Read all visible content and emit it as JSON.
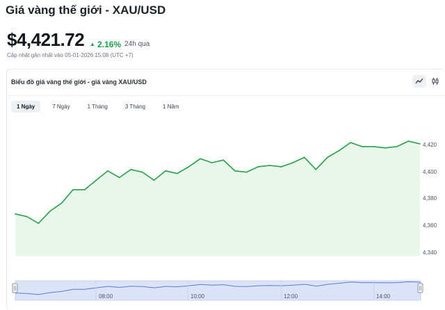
{
  "header": {
    "title": "Giá vàng thế giới - XAU/USD",
    "price": "$4,421.72",
    "change": "2.16%",
    "change_period": "24h qua",
    "updated": "Cập nhật gần nhất vào 05-01-2026 15:08 (UTC +7)"
  },
  "card": {
    "title": "Biểu đồ giá vàng thế giới - giá vàng XAU/USD",
    "view_toggles": [
      {
        "name": "line-chart-icon",
        "active": true
      },
      {
        "name": "candlestick-chart-icon",
        "active": false
      }
    ],
    "ranges": [
      "1 Ngày",
      "7 Ngày",
      "1 Tháng",
      "3 Tháng",
      "1 Năm"
    ],
    "active_range": "1 Ngày"
  },
  "colors": {
    "line": "#22a244",
    "fill": "#e9f6ec",
    "accent_up": "#16a34a",
    "navigator_fill": "#dbe3f7",
    "navigator_line": "#5b7bd5"
  },
  "chart_data": {
    "type": "area",
    "y_ticks": [
      "4,420",
      "4,400",
      "4,380",
      "4,360",
      "4,340"
    ],
    "ylim": [
      4340,
      4420
    ],
    "values": [
      4368,
      4366,
      4361,
      4370,
      4376,
      4386,
      4386,
      4393,
      4400,
      4395,
      4401,
      4399,
      4393,
      4400,
      4398,
      4403,
      4409,
      4406,
      4408,
      4400,
      4399,
      4403,
      4404,
      4403,
      4406,
      4410,
      4401,
      4410,
      4415,
      4421,
      4418,
      4418,
      4417,
      4418,
      4422,
      4420
    ],
    "navigator": {
      "x_ticks": [
        "08:00",
        "10:00",
        "12:00",
        "14:00"
      ]
    }
  }
}
